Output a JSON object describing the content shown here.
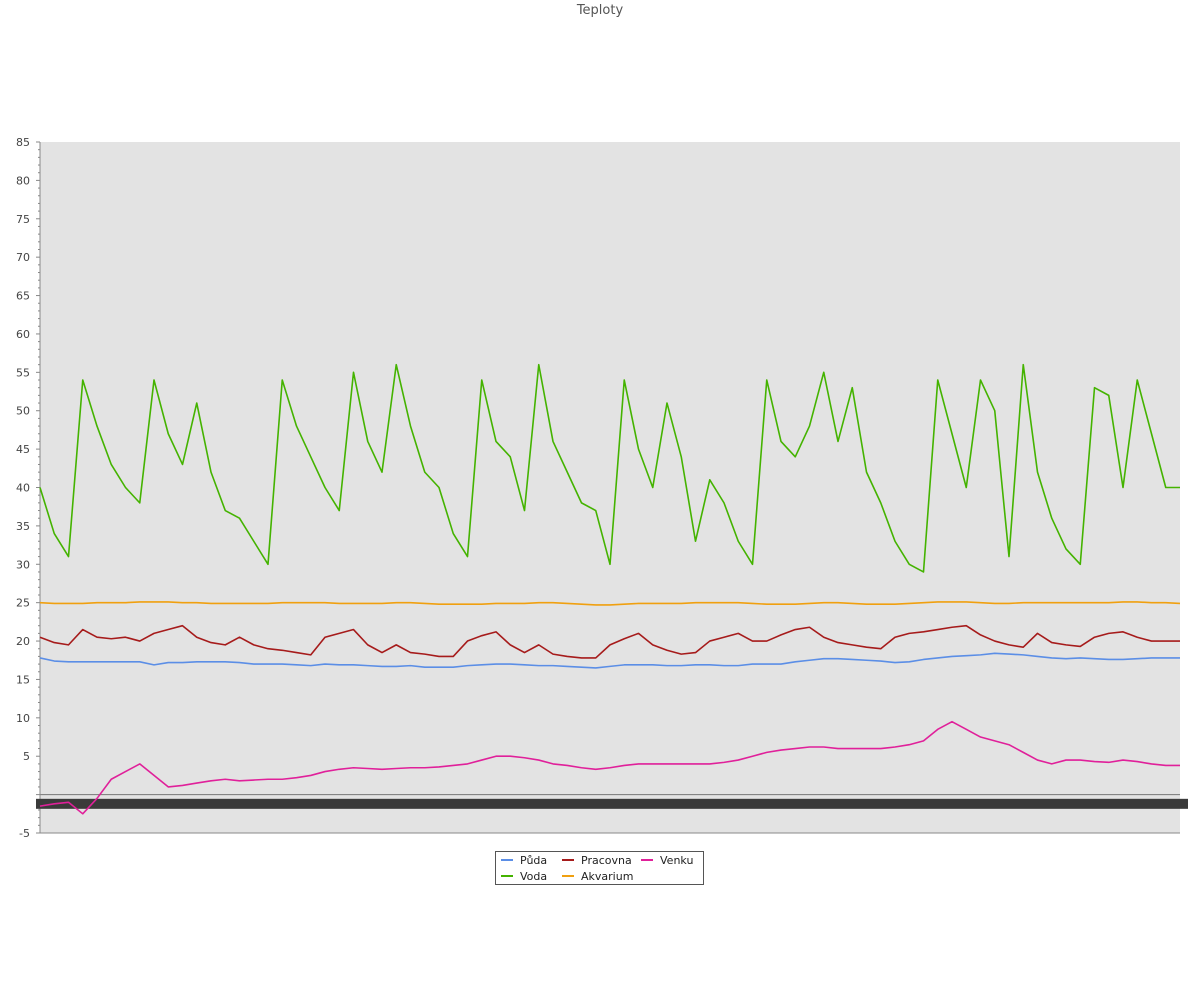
{
  "chart_data": {
    "type": "line",
    "title": "Teploty",
    "xlabel": "",
    "ylabel": "",
    "ylim": [
      -5,
      85
    ],
    "yticks": [
      -5,
      5,
      10,
      15,
      20,
      25,
      30,
      35,
      40,
      45,
      50,
      55,
      60,
      65,
      70,
      75,
      80,
      85
    ],
    "grid": false,
    "legend_position": "bottom-center",
    "x": [
      0,
      1,
      2,
      3,
      4,
      5,
      6,
      7,
      8,
      9,
      10,
      11,
      12,
      13,
      14,
      15,
      16,
      17,
      18,
      19,
      20,
      21,
      22,
      23,
      24,
      25,
      26,
      27,
      28,
      29,
      30,
      31,
      32,
      33,
      34,
      35,
      36,
      37,
      38,
      39,
      40,
      41,
      42,
      43,
      44,
      45,
      46,
      47,
      48,
      49,
      50,
      51,
      52,
      53,
      54,
      55,
      56,
      57,
      58,
      59,
      60,
      61,
      62,
      63,
      64,
      65,
      66,
      67,
      68,
      69,
      70,
      71,
      72,
      73,
      74,
      75,
      76,
      77,
      78,
      79,
      80
    ],
    "series": [
      {
        "name": "Půda",
        "color": "#5b8ee6",
        "values": [
          17.8,
          17.4,
          17.3,
          17.3,
          17.3,
          17.3,
          17.3,
          17.3,
          16.9,
          17.2,
          17.2,
          17.3,
          17.3,
          17.3,
          17.2,
          17.0,
          17.0,
          17.0,
          16.9,
          16.8,
          17.0,
          16.9,
          16.9,
          16.8,
          16.7,
          16.7,
          16.8,
          16.6,
          16.6,
          16.6,
          16.8,
          16.9,
          17.0,
          17.0,
          16.9,
          16.8,
          16.8,
          16.7,
          16.6,
          16.5,
          16.7,
          16.9,
          16.9,
          16.9,
          16.8,
          16.8,
          16.9,
          16.9,
          16.8,
          16.8,
          17.0,
          17.0,
          17.0,
          17.3,
          17.5,
          17.7,
          17.7,
          17.6,
          17.5,
          17.4,
          17.2,
          17.3,
          17.6,
          17.8,
          18.0,
          18.1,
          18.2,
          18.4,
          18.3,
          18.2,
          18.0,
          17.8,
          17.7,
          17.8,
          17.7,
          17.6,
          17.6,
          17.7,
          17.8,
          17.8,
          17.8
        ]
      },
      {
        "name": "Voda",
        "color": "#44b300",
        "values": [
          40,
          34,
          31,
          54,
          48,
          43,
          40,
          38,
          54,
          47,
          43,
          51,
          42,
          37,
          36,
          33,
          30,
          54,
          48,
          44,
          40,
          37,
          55,
          46,
          42,
          56,
          48,
          42,
          40,
          34,
          31,
          54,
          46,
          44,
          37,
          56,
          46,
          42,
          38,
          37,
          30,
          54,
          45,
          40,
          51,
          44,
          33,
          41,
          38,
          33,
          30,
          54,
          46,
          44,
          48,
          55,
          46,
          53,
          42,
          38,
          33,
          30,
          29,
          54,
          47,
          40,
          54,
          50,
          31,
          56,
          42,
          36,
          32,
          30,
          53,
          52,
          40,
          54,
          47,
          40,
          40
        ]
      },
      {
        "name": "Pracovna",
        "color": "#a61b1b",
        "values": [
          20.5,
          19.8,
          19.5,
          21.5,
          20.5,
          20.3,
          20.5,
          20.0,
          21.0,
          21.5,
          22.0,
          20.5,
          19.8,
          19.5,
          20.5,
          19.5,
          19.0,
          18.8,
          18.5,
          18.2,
          20.5,
          21.0,
          21.5,
          19.5,
          18.5,
          19.5,
          18.5,
          18.3,
          18.0,
          18.0,
          20.0,
          20.7,
          21.2,
          19.5,
          18.5,
          19.5,
          18.3,
          18.0,
          17.8,
          17.8,
          19.5,
          20.3,
          21.0,
          19.5,
          18.8,
          18.3,
          18.5,
          20.0,
          20.5,
          21.0,
          20.0,
          20.0,
          20.8,
          21.5,
          21.8,
          20.5,
          19.8,
          19.5,
          19.2,
          19.0,
          20.5,
          21.0,
          21.2,
          21.5,
          21.8,
          22.0,
          20.8,
          20.0,
          19.5,
          19.2,
          21.0,
          19.8,
          19.5,
          19.3,
          20.5,
          21.0,
          21.2,
          20.5,
          20.0,
          20.0,
          20.0
        ]
      },
      {
        "name": "Akvarium",
        "color": "#f0a010",
        "values": [
          25.0,
          24.9,
          24.9,
          24.9,
          25.0,
          25.0,
          25.0,
          25.1,
          25.1,
          25.1,
          25.0,
          25.0,
          24.9,
          24.9,
          24.9,
          24.9,
          24.9,
          25.0,
          25.0,
          25.0,
          25.0,
          24.9,
          24.9,
          24.9,
          24.9,
          25.0,
          25.0,
          24.9,
          24.8,
          24.8,
          24.8,
          24.8,
          24.9,
          24.9,
          24.9,
          25.0,
          25.0,
          24.9,
          24.8,
          24.7,
          24.7,
          24.8,
          24.9,
          24.9,
          24.9,
          24.9,
          25.0,
          25.0,
          25.0,
          25.0,
          24.9,
          24.8,
          24.8,
          24.8,
          24.9,
          25.0,
          25.0,
          24.9,
          24.8,
          24.8,
          24.8,
          24.9,
          25.0,
          25.1,
          25.1,
          25.1,
          25.0,
          24.9,
          24.9,
          25.0,
          25.0,
          25.0,
          25.0,
          25.0,
          25.0,
          25.0,
          25.1,
          25.1,
          25.0,
          25.0,
          24.9
        ]
      },
      {
        "name": "Venku",
        "color": "#e0209a",
        "values": [
          -1.5,
          -1.2,
          -1.0,
          -2.5,
          -0.5,
          2.0,
          3.0,
          4.0,
          2.5,
          1.0,
          1.2,
          1.5,
          1.8,
          2.0,
          1.8,
          1.9,
          2.0,
          2.0,
          2.2,
          2.5,
          3.0,
          3.3,
          3.5,
          3.4,
          3.3,
          3.4,
          3.5,
          3.5,
          3.6,
          3.8,
          4.0,
          4.5,
          5.0,
          5.0,
          4.8,
          4.5,
          4.0,
          3.8,
          3.5,
          3.3,
          3.5,
          3.8,
          4.0,
          4.0,
          4.0,
          4.0,
          4.0,
          4.0,
          4.2,
          4.5,
          5.0,
          5.5,
          5.8,
          6.0,
          6.2,
          6.2,
          6.0,
          6.0,
          6.0,
          6.0,
          6.2,
          6.5,
          7.0,
          8.5,
          9.5,
          8.5,
          7.5,
          7.0,
          6.5,
          5.5,
          4.5,
          4.0,
          4.5,
          4.5,
          4.3,
          4.2,
          4.5,
          4.3,
          4.0,
          3.8,
          3.8
        ]
      }
    ]
  }
}
